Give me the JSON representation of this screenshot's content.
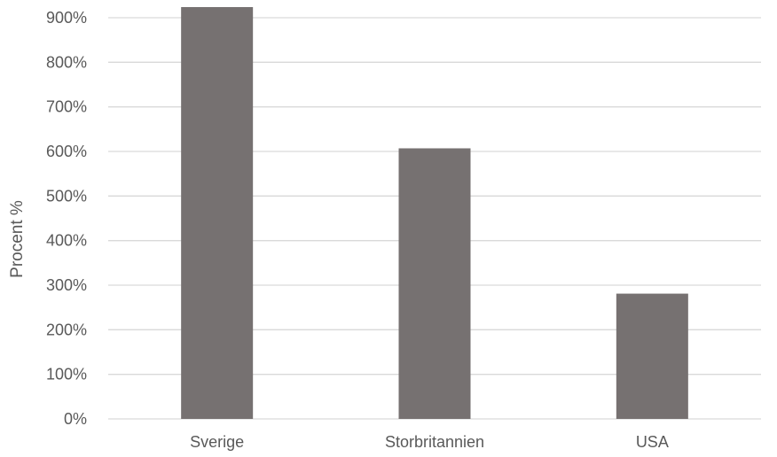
{
  "chart_data": {
    "type": "bar",
    "categories": [
      "Sverige",
      "Storbritannien",
      "USA"
    ],
    "values": [
      925,
      607,
      281
    ],
    "ylabel": "Procent %",
    "xlabel": "",
    "ylim": [
      0,
      900
    ],
    "yticks": [
      "0%",
      "100%",
      "200%",
      "300%",
      "400%",
      "500%",
      "600%",
      "700%",
      "800%",
      "900%"
    ],
    "grid": true,
    "legend": "none",
    "bar_color": "#767171",
    "grid_color": "#d9d9d9",
    "text_color": "#595959"
  }
}
